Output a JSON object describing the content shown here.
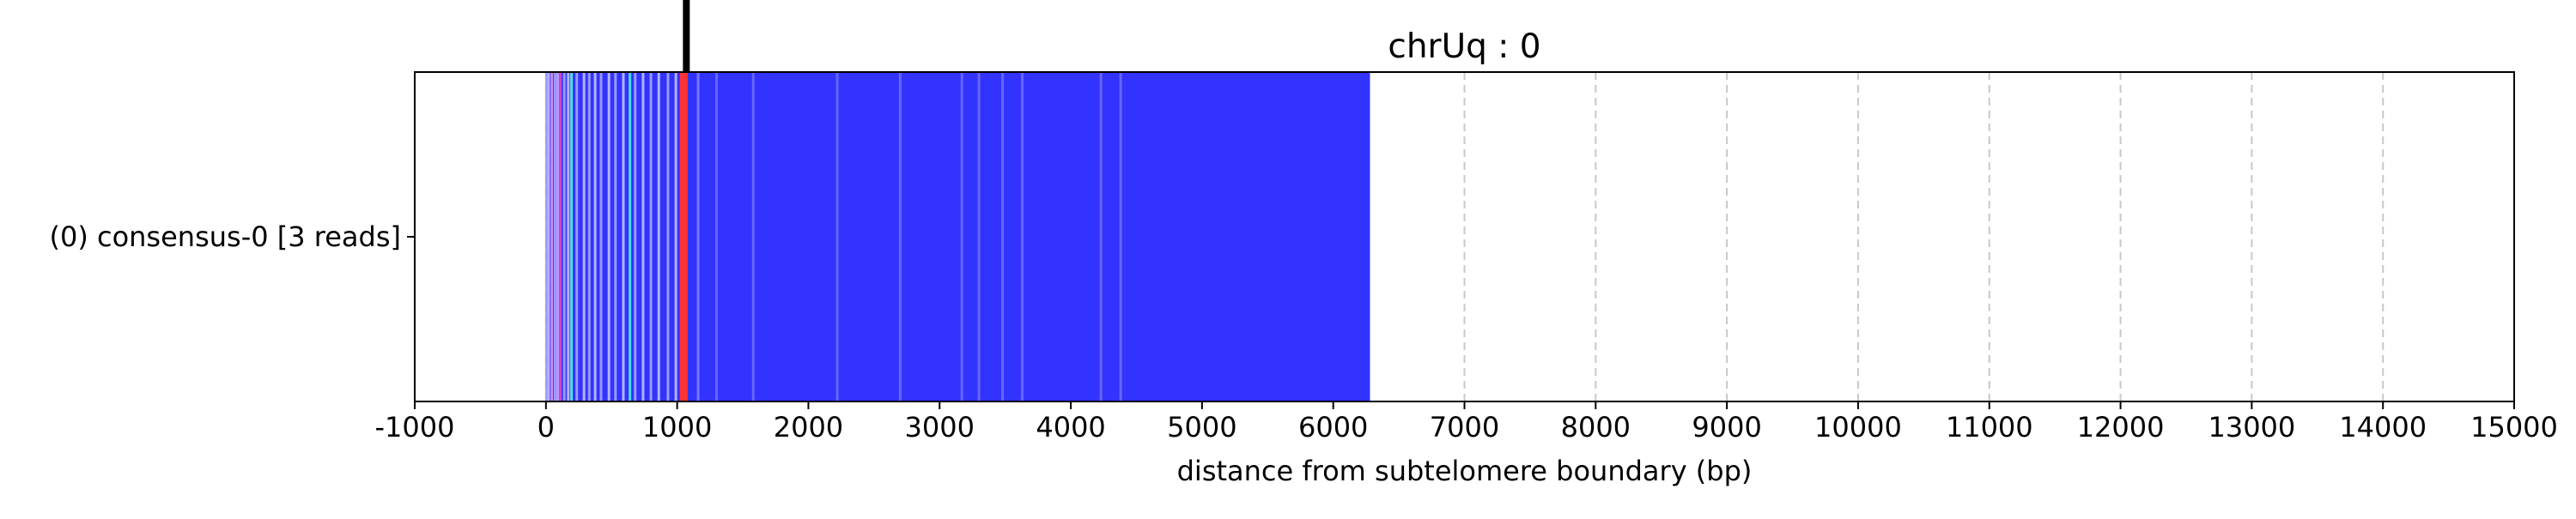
{
  "chart_data": {
    "type": "bar",
    "title": "chrUq : 0",
    "xlabel": "distance from subtelomere boundary (bp)",
    "ylabel": "",
    "xlim": [
      -1000,
      15000
    ],
    "xticks": [
      -1000,
      0,
      1000,
      2000,
      3000,
      4000,
      5000,
      6000,
      7000,
      8000,
      9000,
      10000,
      11000,
      12000,
      13000,
      14000,
      15000
    ],
    "grid": "vertical dashed",
    "categories": [
      "(0) consensus-0 [3 reads]"
    ],
    "series": [
      {
        "category": "(0) consensus-0 [3 reads]",
        "segments": [
          {
            "start": 0,
            "end": 6280,
            "color": "#3333ff"
          }
        ],
        "stripes": [
          {
            "x": 5,
            "color": "#9999ff"
          },
          {
            "x": 20,
            "color": "#b3b3ff"
          },
          {
            "x": 45,
            "color": "#cc88ee"
          },
          {
            "x": 70,
            "color": "#9999ff"
          },
          {
            "x": 90,
            "color": "#bb99ff"
          },
          {
            "x": 110,
            "color": "#cc44cc"
          },
          {
            "x": 140,
            "color": "#9999ff"
          },
          {
            "x": 170,
            "color": "#b3b3ff"
          },
          {
            "x": 195,
            "color": "#55dddd"
          },
          {
            "x": 235,
            "color": "#9999ff"
          },
          {
            "x": 290,
            "color": "#b3b3ff"
          },
          {
            "x": 330,
            "color": "#9999ff"
          },
          {
            "x": 375,
            "color": "#b3b3ff"
          },
          {
            "x": 420,
            "color": "#9999ff"
          },
          {
            "x": 480,
            "color": "#b3b3ff"
          },
          {
            "x": 530,
            "color": "#9999ff"
          },
          {
            "x": 590,
            "color": "#b3b3ff"
          },
          {
            "x": 640,
            "color": "#44dddd"
          },
          {
            "x": 680,
            "color": "#9999ff"
          },
          {
            "x": 740,
            "color": "#b3b3ff"
          },
          {
            "x": 800,
            "color": "#9999ff"
          },
          {
            "x": 860,
            "color": "#b3b3ff"
          },
          {
            "x": 930,
            "color": "#9999ff"
          },
          {
            "x": 990,
            "color": "#b3b3ff"
          },
          {
            "x": 1160,
            "color": "#7777ff"
          },
          {
            "x": 1300,
            "color": "#6666ff"
          },
          {
            "x": 1580,
            "color": "#6666ff"
          },
          {
            "x": 2220,
            "color": "#6666ff"
          },
          {
            "x": 2700,
            "color": "#6666ff"
          },
          {
            "x": 3170,
            "color": "#6666ff"
          },
          {
            "x": 3300,
            "color": "#6666ff"
          },
          {
            "x": 3480,
            "color": "#6666ff"
          },
          {
            "x": 3630,
            "color": "#6666ff"
          },
          {
            "x": 4230,
            "color": "#6666ff"
          },
          {
            "x": 4380,
            "color": "#6666ff"
          }
        ],
        "marks": [
          {
            "x": 1050,
            "width": 60,
            "color": "#ff3333"
          }
        ]
      }
    ],
    "boundary_marker": {
      "x": 1070,
      "color": "#000000"
    }
  }
}
